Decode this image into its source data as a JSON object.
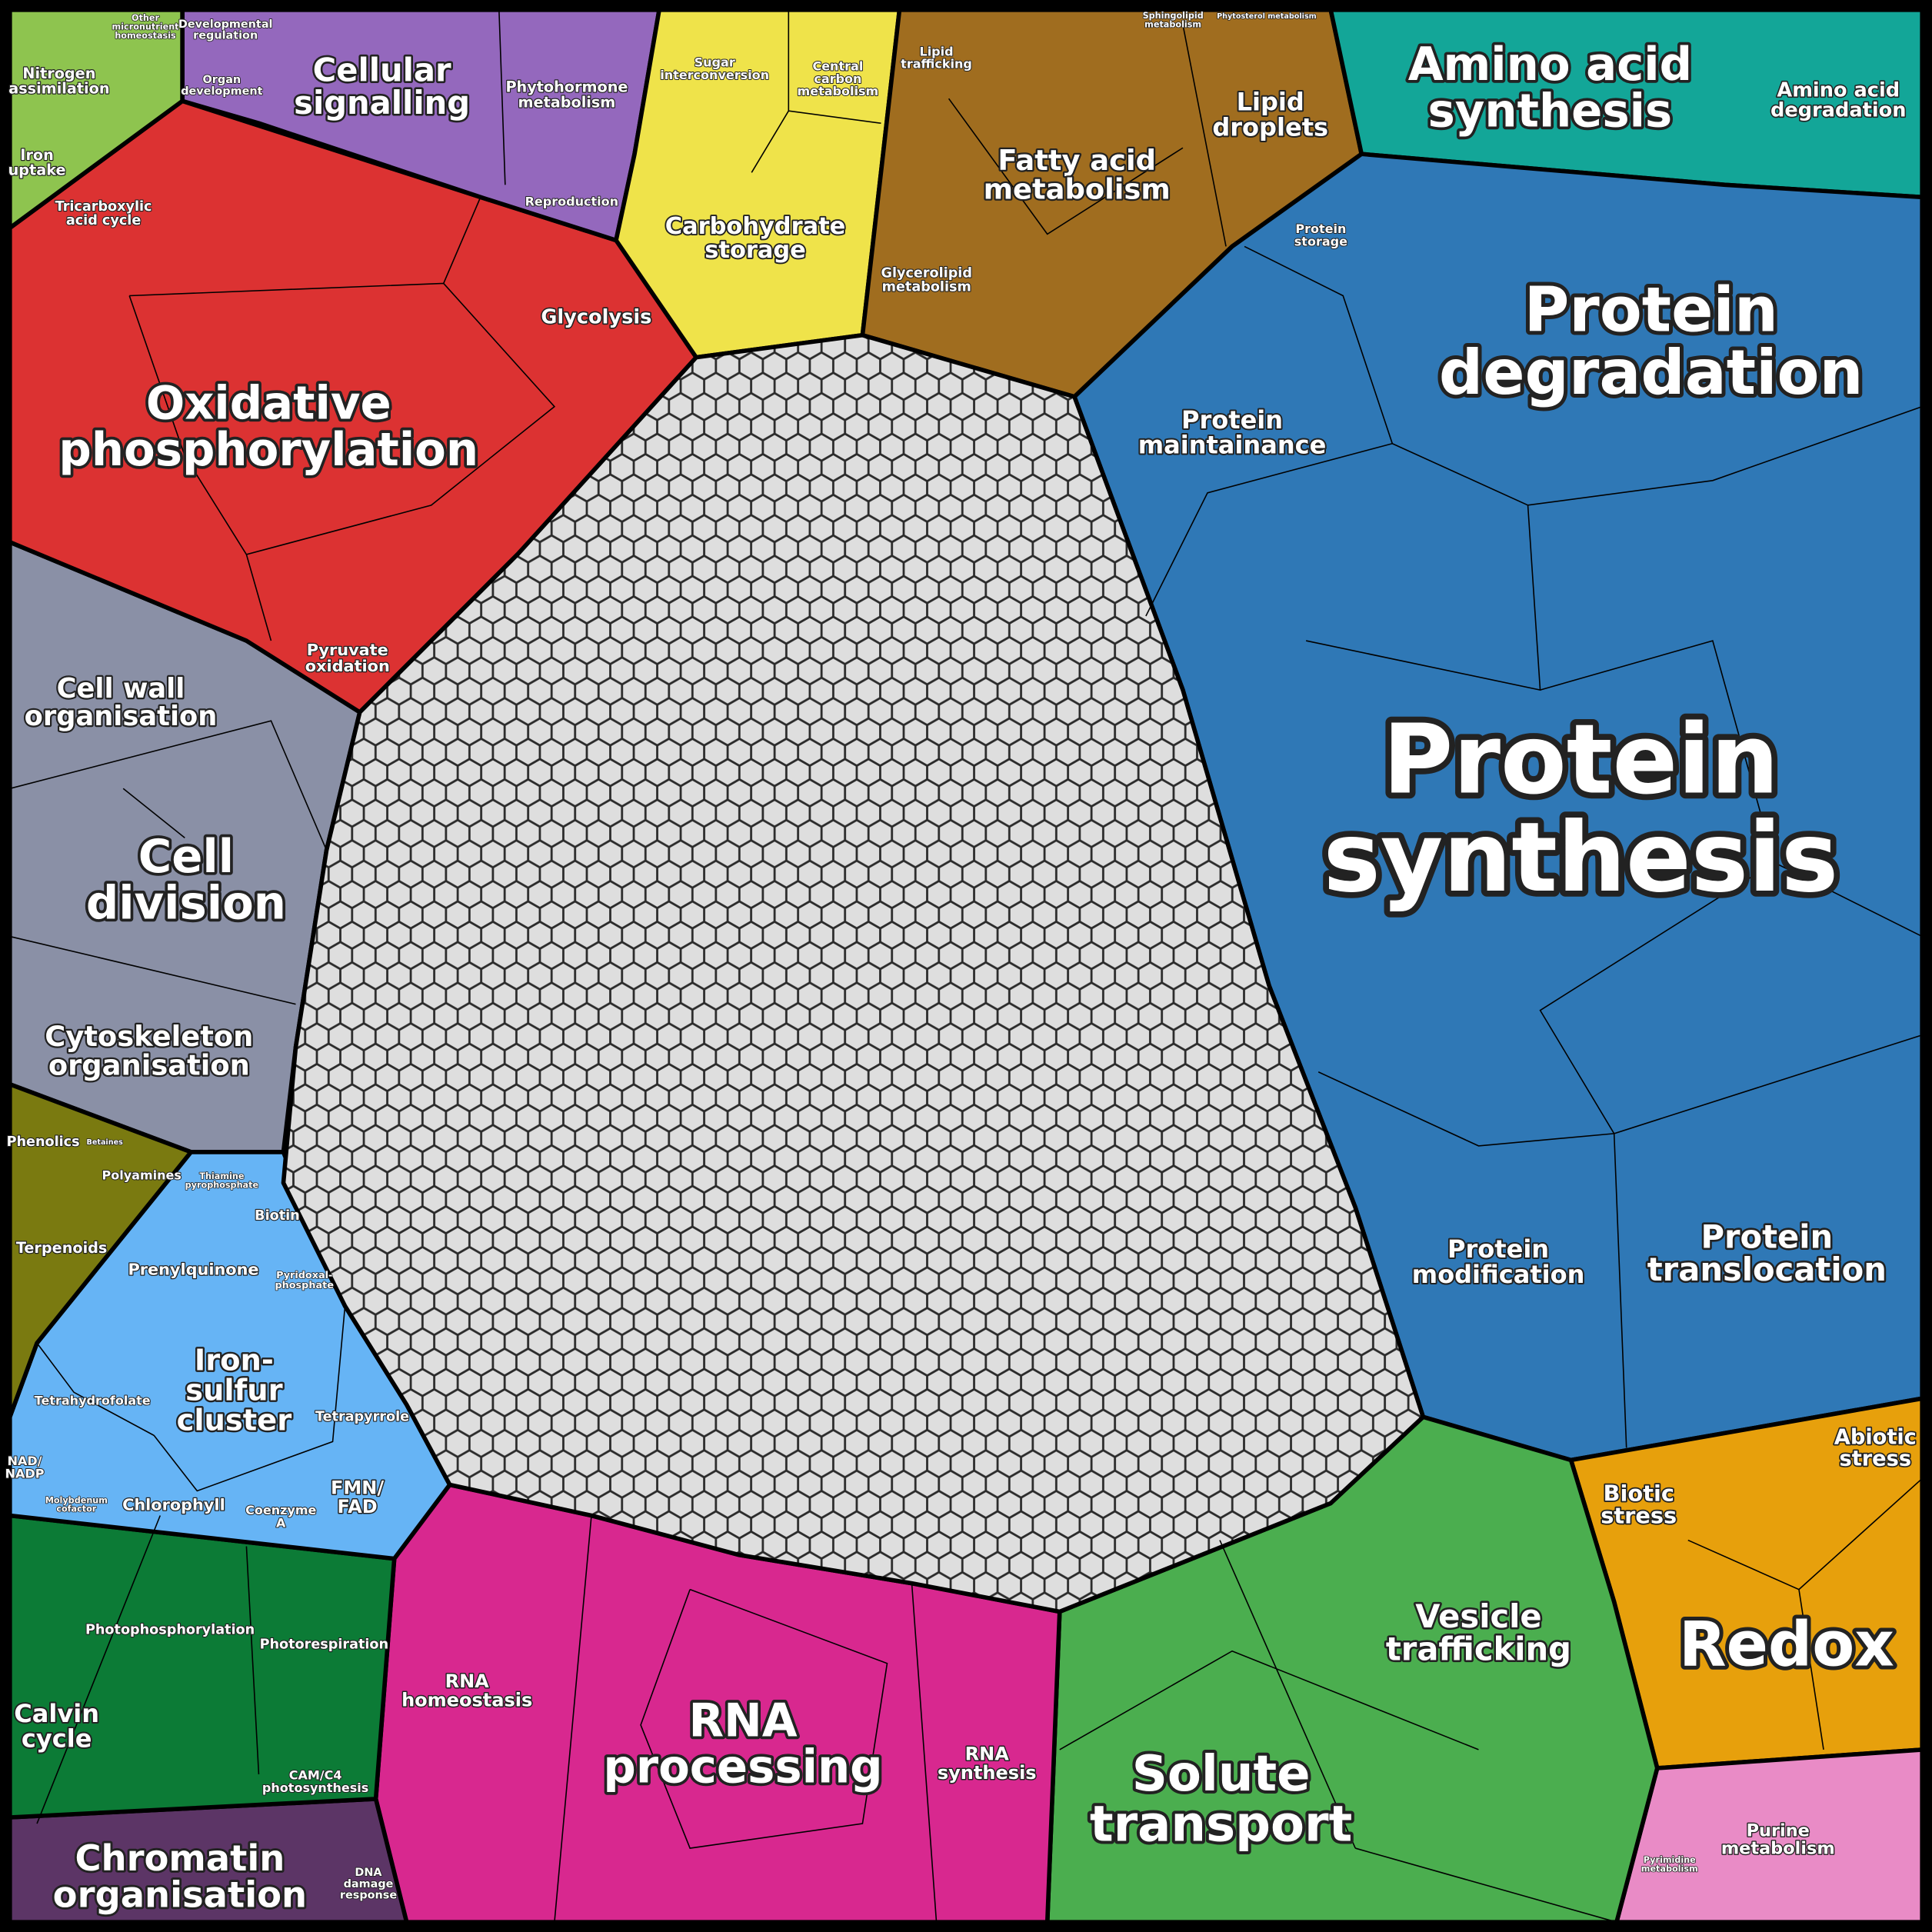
{
  "regions": [
    {
      "lines": [
        "Protein",
        "synthesis"
      ]
    },
    {
      "lines": [
        "Protein",
        "degradation"
      ]
    },
    {
      "lines": [
        "Protein",
        "maintainance"
      ]
    },
    {
      "lines": [
        "Protein",
        "storage"
      ]
    },
    {
      "lines": [
        "Protein",
        "modification"
      ]
    },
    {
      "lines": [
        "Protein",
        "translocation"
      ]
    },
    {
      "lines": [
        "Amino acid",
        "synthesis"
      ]
    },
    {
      "lines": [
        "Amino acid",
        "degradation"
      ]
    },
    {
      "lines": [
        "Fatty acid",
        "metabolism"
      ]
    },
    {
      "lines": [
        "Lipid",
        "droplets"
      ]
    },
    {
      "lines": [
        "Lipid",
        "trafficking"
      ]
    },
    {
      "lines": [
        "Glycerolipid",
        "metabolism"
      ]
    },
    {
      "lines": [
        "Sphingolipid",
        "metabolism"
      ]
    },
    {
      "lines": [
        "Phytosterol metabolism"
      ]
    },
    {
      "lines": [
        "Carbohydrate",
        "storage"
      ]
    },
    {
      "lines": [
        "Sugar",
        "interconversion"
      ]
    },
    {
      "lines": [
        "Central",
        "carbon",
        "metabolism"
      ]
    },
    {
      "lines": [
        "Cellular",
        "signalling"
      ]
    },
    {
      "lines": [
        "Phytohormone",
        "metabolism"
      ]
    },
    {
      "lines": [
        "Developmental",
        "regulation"
      ]
    },
    {
      "lines": [
        "Organ",
        "development"
      ]
    },
    {
      "lines": [
        "Reproduction"
      ]
    },
    {
      "lines": [
        "Nitrogen",
        "assimilation"
      ]
    },
    {
      "lines": [
        "Other",
        "micronutrient",
        "homeostasis"
      ]
    },
    {
      "lines": [
        "Iron",
        "uptake"
      ]
    },
    {
      "lines": [
        "Tricarboxylic",
        "acid cycle"
      ]
    },
    {
      "lines": [
        "Oxidative",
        "phosphorylation"
      ]
    },
    {
      "lines": [
        "Glycolysis"
      ]
    },
    {
      "lines": [
        "Pyruvate",
        "oxidation"
      ]
    },
    {
      "lines": [
        "Cell wall",
        "organisation"
      ]
    },
    {
      "lines": [
        "Cell",
        "division"
      ]
    },
    {
      "lines": [
        "Cytoskeleton",
        "organisation"
      ]
    },
    {
      "lines": [
        "Phenolics"
      ]
    },
    {
      "lines": [
        "Betaines"
      ]
    },
    {
      "lines": [
        "Polyamines"
      ]
    },
    {
      "lines": [
        "Terpenoids"
      ]
    },
    {
      "lines": [
        "Thiamine",
        "pyrophosphate"
      ]
    },
    {
      "lines": [
        "Biotin"
      ]
    },
    {
      "lines": [
        "Prenylquinone"
      ]
    },
    {
      "lines": [
        "Pyridoxal-",
        "phosphate"
      ]
    },
    {
      "lines": [
        "Iron-",
        "sulfur",
        "cluster"
      ]
    },
    {
      "lines": [
        "Tetrahydrofolate"
      ]
    },
    {
      "lines": [
        "Tetrapyrrole"
      ]
    },
    {
      "lines": [
        "NAD/",
        "NADP"
      ]
    },
    {
      "lines": [
        "Molybdenum",
        "cofactor"
      ]
    },
    {
      "lines": [
        "Chlorophyll"
      ]
    },
    {
      "lines": [
        "Coenzyme",
        "A"
      ]
    },
    {
      "lines": [
        "FMN/",
        "FAD"
      ]
    },
    {
      "lines": [
        "Photophosphorylation"
      ]
    },
    {
      "lines": [
        "Photorespiration"
      ]
    },
    {
      "lines": [
        "Calvin",
        "cycle"
      ]
    },
    {
      "lines": [
        "CAM/C4",
        "photosynthesis"
      ]
    },
    {
      "lines": [
        "Chromatin",
        "organisation"
      ]
    },
    {
      "lines": [
        "DNA",
        "damage",
        "response"
      ]
    },
    {
      "lines": [
        "RNA",
        "homeostasis"
      ]
    },
    {
      "lines": [
        "RNA",
        "processing"
      ]
    },
    {
      "lines": [
        "RNA",
        "synthesis"
      ]
    },
    {
      "lines": [
        "Solute",
        "transport"
      ]
    },
    {
      "lines": [
        "Vesicle",
        "trafficking"
      ]
    },
    {
      "lines": [
        "Biotic",
        "stress"
      ]
    },
    {
      "lines": [
        "Abiotic",
        "stress"
      ]
    },
    {
      "lines": [
        "Redox"
      ]
    },
    {
      "lines": [
        "Purine",
        "metabolism"
      ]
    },
    {
      "lines": [
        "Pyrimidine",
        "metabolism"
      ]
    }
  ]
}
